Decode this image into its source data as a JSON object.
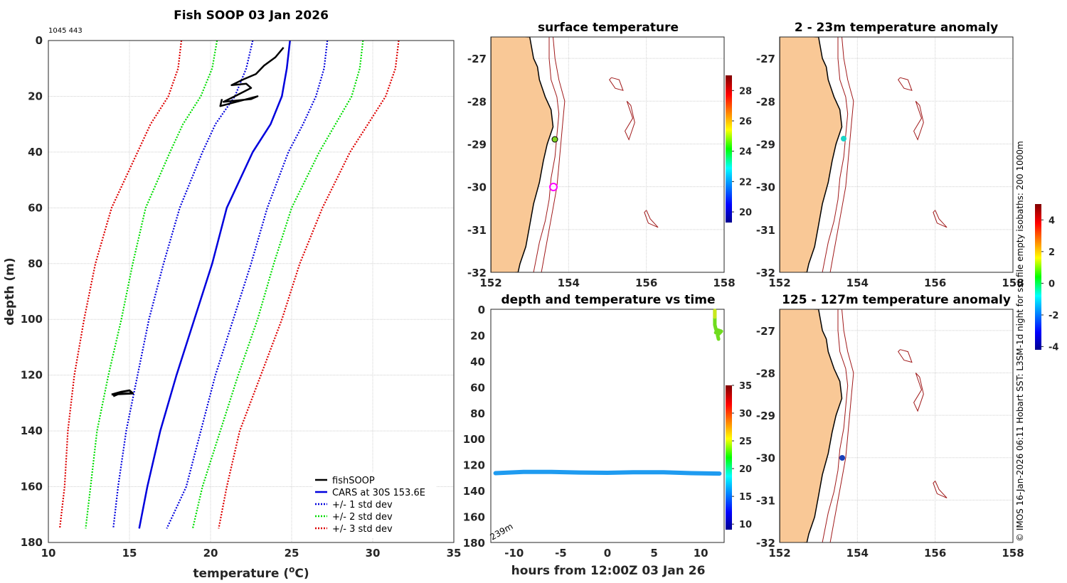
{
  "chart_data": [
    {
      "type": "line",
      "title": "Fish SOOP 03 Jan 2026",
      "id_text": "1045 443",
      "xlabel": "temperature (",
      "xlabel_unit": "o",
      "xlabel_end": "C)",
      "ylabel": "depth (m)",
      "xlim": [
        10,
        35
      ],
      "ylim": [
        0,
        180
      ],
      "xticks": [
        "10",
        "15",
        "20",
        "25",
        "30",
        "35"
      ],
      "yticks": [
        "0",
        "20",
        "40",
        "60",
        "80",
        "100",
        "120",
        "140",
        "160",
        "180"
      ],
      "depth": [
        0,
        10,
        20,
        30,
        40,
        60,
        80,
        100,
        120,
        140,
        160,
        175
      ],
      "series": [
        {
          "name": "CARS at 30S 153.6E",
          "color": "#0000dd",
          "style": "solid",
          "t": [
            24.9,
            24.7,
            24.4,
            23.7,
            22.6,
            21.0,
            20.1,
            19.0,
            17.9,
            16.9,
            16.1,
            15.6
          ]
        },
        {
          "name": "+/- 1 std dev",
          "color": "#0000dd",
          "style": "dotted",
          "t": [
            22.6,
            22.2,
            21.5,
            20.3,
            19.5,
            18.1,
            17.1,
            16.2,
            15.5,
            14.8,
            14.3,
            14.0
          ]
        },
        {
          "name": "+/- 1 std dev upper",
          "color": "#0000dd",
          "style": "dotted",
          "t": [
            27.2,
            27.0,
            26.5,
            25.7,
            24.8,
            23.5,
            22.5,
            21.4,
            20.3,
            19.4,
            18.5,
            17.3
          ]
        },
        {
          "name": "+/- 2 std dev",
          "color": "#00dd00",
          "style": "dotted",
          "t": [
            20.4,
            20.1,
            19.4,
            18.3,
            17.5,
            16.0,
            15.2,
            14.5,
            13.7,
            13.0,
            12.6,
            12.3
          ]
        },
        {
          "name": "+/- 2 std dev upper",
          "color": "#00dd00",
          "style": "dotted",
          "t": [
            29.4,
            29.2,
            28.7,
            27.7,
            26.7,
            25.0,
            23.9,
            22.9,
            21.7,
            20.6,
            19.5,
            18.9
          ]
        },
        {
          "name": "+/- 3 std dev",
          "color": "#dd0000",
          "style": "dotted",
          "t": [
            18.2,
            18.0,
            17.4,
            16.3,
            15.5,
            13.9,
            12.9,
            12.2,
            11.6,
            11.2,
            11.0,
            10.7
          ]
        },
        {
          "name": "+/- 3 std dev upper",
          "color": "#dd0000",
          "style": "dotted",
          "t": [
            31.6,
            31.4,
            30.8,
            29.7,
            28.6,
            26.9,
            25.5,
            24.4,
            23.1,
            21.8,
            21.0,
            20.5
          ]
        }
      ],
      "fishsoop": {
        "name": "fishSOOP",
        "color": "#000000",
        "upper_t": [
          24.5,
          24.0,
          23.3,
          22.8,
          22.0,
          21.3,
          22.2,
          22.5,
          21.5,
          20.8,
          22.5,
          22.9,
          20.6,
          20.7
        ],
        "upper_d": [
          2.5,
          6,
          9,
          12,
          14,
          16,
          15.5,
          17,
          20,
          22,
          21,
          20,
          23.5,
          21
        ],
        "lower_t": [
          13.9,
          14.5,
          15.0,
          15.2,
          14.3,
          14.0
        ],
        "lower_d": [
          127,
          126,
          125.5,
          126.5,
          126.8,
          127.5
        ]
      },
      "legend": [
        "fishSOOP",
        "CARS at 30S 153.6E",
        "+/- 1 std dev",
        "+/- 2 std dev",
        "+/- 3 std dev"
      ],
      "legend_loc": "bottom-right"
    },
    {
      "type": "map",
      "title": "surface temperature",
      "xlim": [
        152,
        158
      ],
      "ylim": [
        -32,
        -26.5
      ],
      "xticks": [
        "152",
        "154",
        "156",
        "158"
      ],
      "yticks": [
        "-27",
        "-28",
        "-29",
        "-30",
        "-31",
        "-32"
      ],
      "points": [
        {
          "lon": 153.6,
          "lat": -28.9,
          "value": 24.5,
          "marker": "filled"
        },
        {
          "lon": 153.55,
          "lat": -30.0,
          "marker": "ring",
          "color": "#ff00ff"
        }
      ],
      "colorbar": {
        "min": 19.3,
        "max": 29,
        "ticks": [
          "20",
          "22",
          "24",
          "26",
          "28"
        ]
      }
    },
    {
      "type": "map",
      "title": "2 - 23m temperature anomaly",
      "xlim": [
        152,
        158
      ],
      "ylim": [
        -32,
        -26.5
      ],
      "xticks": [
        "152",
        "154",
        "156",
        "158"
      ],
      "yticks": [
        "-27",
        "-28",
        "-29",
        "-30",
        "-31",
        "-32"
      ],
      "points": [
        {
          "lon": 153.6,
          "lat": -28.85,
          "value": -1.2
        }
      ]
    },
    {
      "type": "scatter",
      "title": "depth and temperature vs time",
      "xlabel": "hours from 12:00Z 03 Jan 26",
      "xlim": [
        -12.5,
        12.5
      ],
      "ylim": [
        0,
        180
      ],
      "xticks": [
        "-10",
        "-5",
        "0",
        "5",
        "10"
      ],
      "yticks": [
        "0",
        "20",
        "40",
        "60",
        "80",
        "100",
        "120",
        "140",
        "160",
        "180"
      ],
      "annotation": "239m",
      "upper_track": {
        "hours": [
          11.5,
          11.5,
          11.5,
          11.5,
          11.6,
          11.7,
          11.6,
          11.8,
          12.2,
          11.8,
          11.9
        ],
        "depth": [
          1,
          5,
          9,
          12,
          15,
          17,
          18,
          16,
          17,
          20,
          23
        ],
        "temp": [
          25,
          24.5,
          24,
          23.5,
          23,
          23,
          22.5,
          22,
          22,
          22.5,
          22
        ]
      },
      "lower_track": {
        "hours": [
          -12,
          -9,
          -6,
          -3,
          0,
          3,
          6,
          9,
          12
        ],
        "depth": [
          126.5,
          125.5,
          125.5,
          126,
          126.2,
          125.8,
          125.8,
          126.5,
          126.8
        ],
        "temp": [
          16,
          16.5,
          16.5,
          16.2,
          16,
          16.3,
          16.2,
          16,
          16
        ]
      },
      "colorbar": {
        "min": 9,
        "max": 35,
        "ticks": [
          "10",
          "15",
          "20",
          "25",
          "30",
          "35"
        ]
      }
    },
    {
      "type": "map",
      "title": "125 - 127m temperature anomaly",
      "xlim": [
        152,
        158
      ],
      "ylim": [
        -32,
        -26.5
      ],
      "xticks": [
        "152",
        "154",
        "156",
        "158"
      ],
      "yticks": [
        "-27",
        "-28",
        "-29",
        "-30",
        "-31",
        "-32"
      ],
      "points": [
        {
          "lon": 153.55,
          "lat": -30.0,
          "value": -3.2
        }
      ],
      "colorbar": {
        "min": -4.2,
        "max": 5,
        "ticks": [
          "4",
          "2",
          "0",
          "-2",
          "-4"
        ]
      }
    }
  ],
  "side_note": "© IMOS 16-Jan-2026 06:11 Hobart SST: L3SM-1d night for  sst file empty isobaths: 200  1000m",
  "colors": {
    "land": "#f9c896",
    "isobath": "#a0191a",
    "coast": "#000000"
  }
}
